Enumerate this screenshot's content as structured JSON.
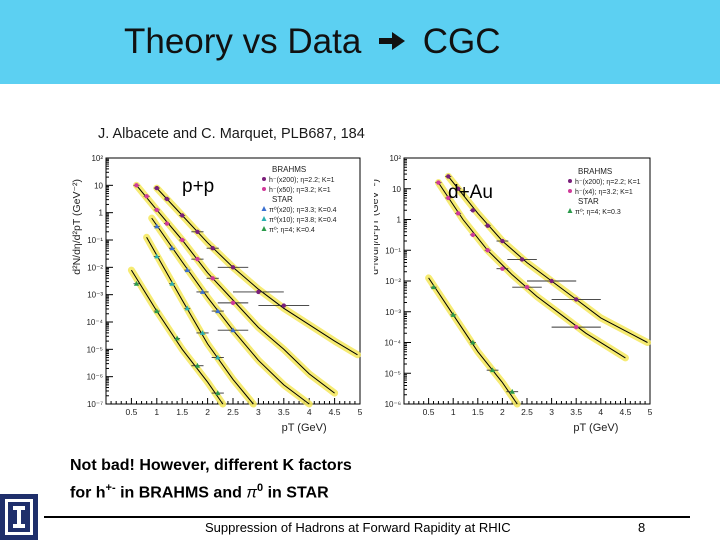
{
  "slide": {
    "title_left": "Theory vs Data",
    "arrow_icon": "right-arrow-icon",
    "title_right": "CGC",
    "citation": "J. Albacete and C. Marquet, PLB687, 184",
    "note_line1": "Not bad! However, different K factors",
    "note_line2_pre": "for h",
    "note_line2_sup": "+-",
    "note_line2_mid": " in BRAHMS and ",
    "note_pi": "π",
    "note_pi_sup": "0",
    "note_line2_post": " in STAR",
    "footer": "Suppression of Hadrons at Forward Rapidity at RHIC",
    "page": "8",
    "colors": {
      "band": "#5cd0f2",
      "band_curve": "#f5e85a"
    }
  },
  "chart_data": [
    {
      "type": "scatter",
      "title": "p+p",
      "xlabel": "pT (GeV)",
      "ylabel": "d²N/dη/d²pT (GeV⁻²)",
      "xlim": [
        0,
        5
      ],
      "ylim_exp": [
        -7,
        2
      ],
      "xticks": [
        "0.5",
        "1",
        "1.5",
        "2",
        "2.5",
        "3",
        "3.5",
        "4",
        "4.5",
        "5"
      ],
      "yticks": [
        "10⁻⁷",
        "10⁻⁶",
        "10⁻⁵",
        "10⁻⁴",
        "10⁻³",
        "10⁻²",
        "10⁻¹",
        "1",
        "10",
        "10²"
      ],
      "legend": {
        "groups": [
          {
            "header": "BRAHMS",
            "entries": [
              {
                "label": "h⁻(x200); η=2.2; K=1",
                "color": "#7a1f7a",
                "marker": "circle"
              },
              {
                "label": "h⁻(x50); η=3.2; K=1",
                "color": "#d03a9a",
                "marker": "circle"
              }
            ]
          },
          {
            "header": "STAR",
            "entries": [
              {
                "label": "π⁰(x20); η=3.3; K=0.4",
                "color": "#3a6fd0",
                "marker": "triangle"
              },
              {
                "label": "π⁰(x10); η=3.8; K=0.4",
                "color": "#2ab0b0",
                "marker": "triangle"
              },
              {
                "label": "π⁰; η=4; K=0.4",
                "color": "#2a9a4a",
                "marker": "triangle"
              }
            ]
          }
        ]
      },
      "series": [
        {
          "name": "BRAHMS η=2.2",
          "color": "#7a1f7a",
          "marker": "circle",
          "x": [
            1.0,
            1.2,
            1.5,
            1.8,
            2.1,
            2.5,
            3.0,
            3.5
          ],
          "y_exp": [
            0.9,
            0.5,
            -0.1,
            -0.7,
            -1.3,
            -2.0,
            -2.9,
            -3.4
          ],
          "curve_y_exp": [
            [
              1.0,
              0.9
            ],
            [
              1.5,
              -0.1
            ],
            [
              2.0,
              -1.1
            ],
            [
              2.5,
              -2.0
            ],
            [
              3.0,
              -2.8
            ],
            [
              3.5,
              -3.5
            ],
            [
              4.5,
              -4.7
            ],
            [
              4.95,
              -5.2
            ]
          ]
        },
        {
          "name": "BRAHMS η=3.2",
          "color": "#d03a9a",
          "marker": "circle",
          "x": [
            0.6,
            0.8,
            1.0,
            1.2,
            1.5,
            1.8,
            2.1,
            2.5
          ],
          "y_exp": [
            1.0,
            0.6,
            0.1,
            -0.4,
            -1.0,
            -1.7,
            -2.4,
            -3.3
          ],
          "curve_y_exp": [
            [
              0.6,
              1.0
            ],
            [
              1.0,
              0.1
            ],
            [
              1.5,
              -1.0
            ],
            [
              2.0,
              -2.2
            ],
            [
              2.5,
              -3.2
            ],
            [
              3.0,
              -4.2
            ],
            [
              3.5,
              -5.0
            ],
            [
              4.0,
              -5.9
            ],
            [
              4.5,
              -6.6
            ]
          ]
        },
        {
          "name": "STAR π⁰ η=3.3",
          "color": "#3a6fd0",
          "marker": "triangle",
          "x": [
            1.0,
            1.3,
            1.6,
            1.9,
            2.2,
            2.5
          ],
          "y_exp": [
            -0.5,
            -1.3,
            -2.1,
            -2.9,
            -3.6,
            -4.3
          ],
          "curve_y_exp": [
            [
              0.9,
              -0.2
            ],
            [
              1.5,
              -1.8
            ],
            [
              2.0,
              -3.1
            ],
            [
              2.5,
              -4.3
            ],
            [
              3.0,
              -5.4
            ],
            [
              3.5,
              -6.3
            ],
            [
              4.0,
              -7.0
            ]
          ]
        },
        {
          "name": "STAR π⁰ η=3.8",
          "color": "#2ab0b0",
          "marker": "triangle",
          "x": [
            1.0,
            1.3,
            1.6,
            1.9,
            2.2
          ],
          "y_exp": [
            -1.6,
            -2.6,
            -3.5,
            -4.4,
            -5.3
          ],
          "curve_y_exp": [
            [
              0.8,
              -0.9
            ],
            [
              1.5,
              -3.2
            ],
            [
              2.0,
              -4.8
            ],
            [
              2.5,
              -6.1
            ],
            [
              2.9,
              -7.0
            ]
          ]
        },
        {
          "name": "STAR π⁰ η=4",
          "color": "#2a9a4a",
          "marker": "triangle",
          "x": [
            0.6,
            1.0,
            1.4,
            1.8,
            2.2
          ],
          "y_exp": [
            -2.6,
            -3.6,
            -4.6,
            -5.6,
            -6.6
          ],
          "curve_y_exp": [
            [
              0.5,
              -2.1
            ],
            [
              1.0,
              -3.6
            ],
            [
              1.5,
              -5.0
            ],
            [
              2.0,
              -6.2
            ],
            [
              2.3,
              -7.0
            ]
          ]
        }
      ]
    },
    {
      "type": "scatter",
      "title": "d+Au",
      "xlabel": "pT (GeV)",
      "ylabel": "d²N/dη/d²pT (GeV⁻²)",
      "xlim": [
        0,
        5
      ],
      "ylim_exp": [
        -6,
        2
      ],
      "xticks": [
        "0.5",
        "1",
        "1.5",
        "2",
        "2.5",
        "3",
        "3.5",
        "4",
        "4.5",
        "5"
      ],
      "yticks": [
        "10⁻⁶",
        "10⁻⁵",
        "10⁻⁴",
        "10⁻³",
        "10⁻²",
        "10⁻¹",
        "1",
        "10",
        "10²"
      ],
      "legend": {
        "groups": [
          {
            "header": "BRAHMS",
            "entries": [
              {
                "label": "h⁻(x200); η=2.2; K=1",
                "color": "#7a1f7a",
                "marker": "circle"
              },
              {
                "label": "h⁻(x4); η=3.2; K=1",
                "color": "#d03a9a",
                "marker": "circle"
              }
            ]
          },
          {
            "header": "STAR",
            "entries": [
              {
                "label": "π⁰; η=4; K=0.3",
                "color": "#2a9a4a",
                "marker": "triangle"
              }
            ]
          }
        ]
      },
      "series": [
        {
          "name": "BRAHMS η=2.2",
          "color": "#7a1f7a",
          "marker": "circle",
          "x": [
            0.9,
            1.1,
            1.4,
            1.7,
            2.0,
            2.4,
            3.0,
            3.5
          ],
          "y_exp": [
            1.4,
            1.0,
            0.3,
            -0.2,
            -0.7,
            -1.3,
            -2.0,
            -2.6
          ],
          "curve_y_exp": [
            [
              0.9,
              1.4
            ],
            [
              1.5,
              0.2
            ],
            [
              2.0,
              -0.7
            ],
            [
              2.5,
              -1.4
            ],
            [
              3.0,
              -2.0
            ],
            [
              3.5,
              -2.6
            ],
            [
              4.0,
              -3.2
            ],
            [
              4.95,
              -4.0
            ]
          ]
        },
        {
          "name": "BRAHMS η=3.2",
          "color": "#d03a9a",
          "marker": "circle",
          "x": [
            0.7,
            0.9,
            1.1,
            1.4,
            1.7,
            2.0,
            2.5,
            3.5
          ],
          "y_exp": [
            1.2,
            0.7,
            0.2,
            -0.5,
            -1.0,
            -1.6,
            -2.2,
            -3.5
          ],
          "curve_y_exp": [
            [
              0.7,
              1.2
            ],
            [
              1.2,
              0.0
            ],
            [
              1.7,
              -1.0
            ],
            [
              2.2,
              -1.8
            ],
            [
              2.7,
              -2.5
            ],
            [
              3.2,
              -3.1
            ],
            [
              3.7,
              -3.7
            ],
            [
              4.5,
              -4.5
            ]
          ]
        },
        {
          "name": "STAR π⁰ η=4",
          "color": "#2a9a4a",
          "marker": "triangle",
          "x": [
            0.6,
            1.0,
            1.4,
            1.8,
            2.2
          ],
          "y_exp": [
            -2.2,
            -3.1,
            -4.0,
            -4.9,
            -5.6
          ],
          "curve_y_exp": [
            [
              0.5,
              -1.9
            ],
            [
              1.0,
              -3.1
            ],
            [
              1.5,
              -4.3
            ],
            [
              2.0,
              -5.3
            ],
            [
              2.3,
              -6.0
            ]
          ]
        }
      ]
    }
  ]
}
